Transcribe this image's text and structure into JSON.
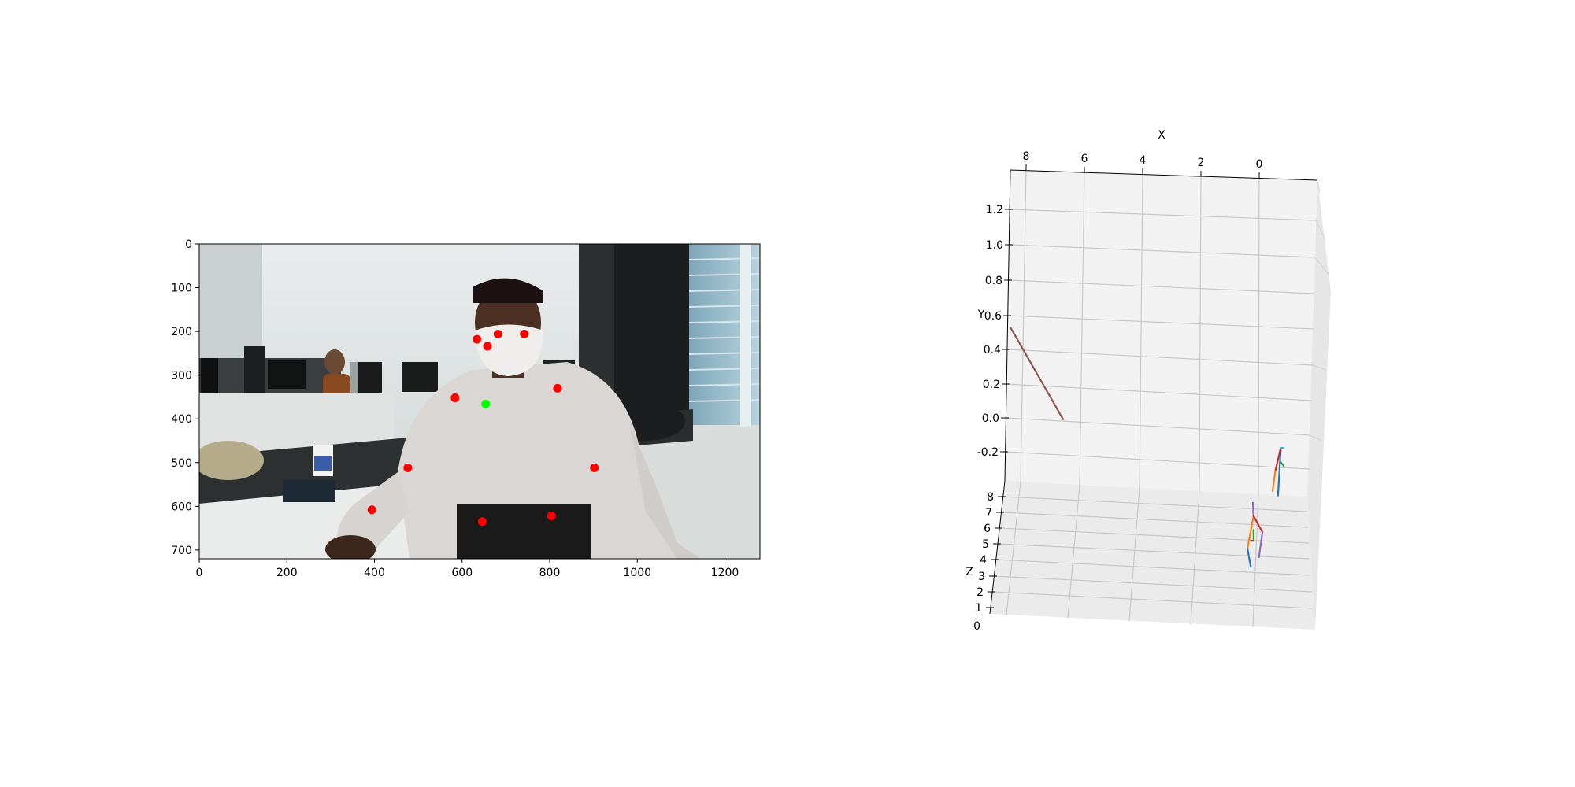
{
  "chart_data": [
    {
      "type": "scatter",
      "description_kind": "image-with-keypoints",
      "xlim": [
        0,
        1280
      ],
      "ylim": [
        720,
        0
      ],
      "xticks": [
        "0",
        "200",
        "400",
        "600",
        "800",
        "1000",
        "1200"
      ],
      "yticks": [
        "0",
        "100",
        "200",
        "300",
        "400",
        "500",
        "600",
        "700"
      ],
      "grid": false,
      "series": [
        {
          "color": "#ff0000",
          "points": [
            [
              634,
              218
            ],
            [
              682,
              206
            ],
            [
              742,
              206
            ],
            [
              658,
              234
            ],
            [
              584,
              352
            ],
            [
              818,
              330
            ],
            [
              476,
              512
            ],
            [
              902,
              512
            ],
            [
              394,
              608
            ],
            [
              646,
              635
            ],
            [
              804,
              622
            ]
          ]
        },
        {
          "color": "#00ff00",
          "points": [
            [
              654,
              366
            ]
          ]
        }
      ]
    },
    {
      "type": "line3d",
      "xlabel": "X",
      "ylabel": "Y",
      "zlabel": "Z",
      "xticks": [
        "8",
        "6",
        "4",
        "2",
        "0"
      ],
      "yticks": [
        "1.2",
        "1.0",
        "0.8",
        "0.6",
        "0.4",
        "0.2",
        "0.0",
        "-0.2"
      ],
      "zticks": [
        "8",
        "7",
        "6",
        "5",
        "4",
        "3",
        "2",
        "1",
        "0"
      ],
      "grid": true,
      "segments": [
        {
          "color": "#8c564b",
          "start": [
            7.8,
            1.3,
            10.0
          ],
          "end": [
            6.0,
            0.78,
            10.0
          ]
        },
        {
          "color": "#1f77b4",
          "start": [
            -0.9,
            -0.06,
            1.6
          ],
          "end": [
            -0.8,
            -0.33,
            1.5
          ]
        },
        {
          "color": "#d62728",
          "start": [
            -0.9,
            -0.05,
            1.6
          ],
          "end": [
            -0.7,
            -0.2,
            1.4
          ]
        },
        {
          "color": "#ff7f0e",
          "start": [
            -0.7,
            -0.2,
            1.4
          ],
          "end": [
            -0.6,
            -0.32,
            1.3
          ]
        },
        {
          "color": "#17becf",
          "start": [
            -1.0,
            -0.04,
            1.7
          ],
          "end": [
            -0.9,
            -0.05,
            1.6
          ]
        },
        {
          "color": "#2ca02c",
          "start": [
            -0.9,
            -0.14,
            1.5
          ],
          "end": [
            -1.0,
            -0.16,
            1.5
          ]
        },
        {
          "color": "#9467bd",
          "start": [
            0.0,
            -0.3,
            2.4
          ],
          "end": [
            0.0,
            -0.4,
            2.1
          ]
        },
        {
          "color": "#ff7f0e",
          "start": [
            0.0,
            -0.4,
            2.1
          ],
          "end": [
            0.2,
            -0.58,
            2.2
          ]
        },
        {
          "color": "#1f77b4",
          "start": [
            0.2,
            -0.58,
            2.2
          ],
          "end": [
            0.1,
            -0.7,
            2.0
          ]
        },
        {
          "color": "#d62728",
          "start": [
            0.0,
            -0.4,
            2.1
          ],
          "end": [
            -0.3,
            -0.5,
            2.0
          ]
        },
        {
          "color": "#9467bd",
          "start": [
            -0.3,
            -0.5,
            2.0
          ],
          "end": [
            -0.2,
            -0.62,
            2.3
          ]
        },
        {
          "color": "#2ca02c",
          "start": [
            0.0,
            -0.48,
            2.1
          ],
          "end": [
            0.0,
            -0.55,
            2.0
          ]
        },
        {
          "color": "#8c564b",
          "start": [
            0.0,
            -0.55,
            2.0
          ],
          "end": [
            0.1,
            -0.55,
            2.0
          ]
        }
      ]
    }
  ]
}
